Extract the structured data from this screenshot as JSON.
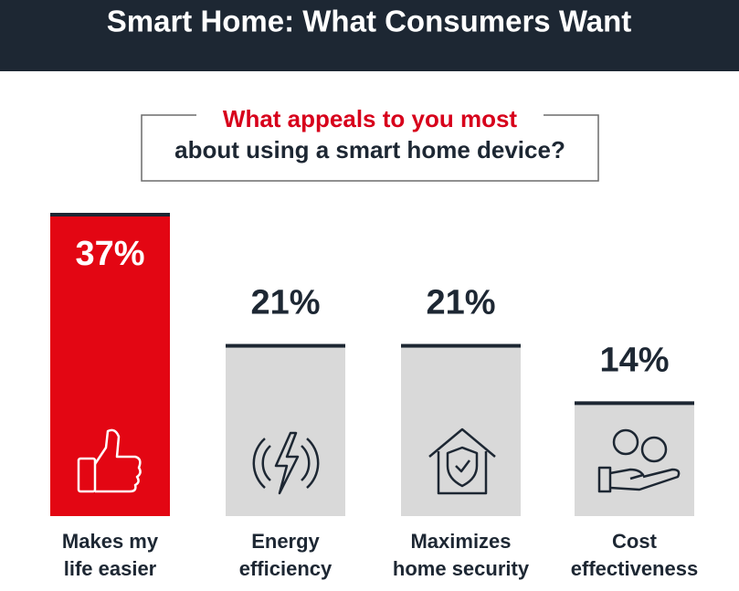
{
  "chart_data": {
    "type": "bar",
    "title": "Smart Home: What Consumers Want",
    "question": [
      "What appeals to you most",
      "about using a smart home device?"
    ],
    "categories": [
      [
        "Makes my",
        "life easier"
      ],
      [
        "Energy",
        "efficiency"
      ],
      [
        "Maximizes",
        "home security"
      ],
      [
        "Cost",
        "effectiveness"
      ]
    ],
    "values": [
      37,
      21,
      21,
      14
    ],
    "value_labels": [
      "37%",
      "21%",
      "21%",
      "14%"
    ],
    "colors": [
      "#e30613",
      "#d9d9d9",
      "#d9d9d9",
      "#d9d9d9"
    ]
  }
}
